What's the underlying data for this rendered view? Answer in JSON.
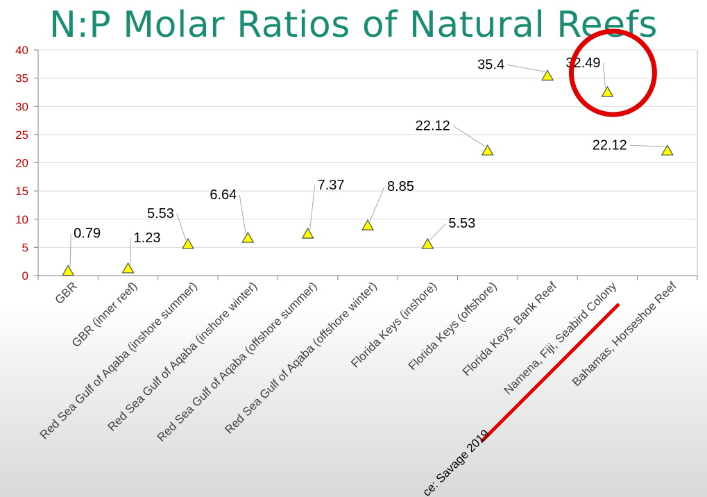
{
  "title": "N:P Molar Ratios of Natural Reefs",
  "chart_data": {
    "type": "scatter",
    "title": "N:P Molar Ratios of Natural Reefs",
    "xlabel": "",
    "ylabel": "",
    "ylim": [
      0,
      40
    ],
    "yticks": [
      0,
      5,
      10,
      15,
      20,
      25,
      30,
      35,
      40
    ],
    "grid": true,
    "marker": "triangle",
    "marker_color": "#ffff00",
    "categories": [
      "GBR",
      "GBR (inner reef)",
      "Red Sea Gulf of Aqaba (inshore summer)",
      "Red Sea Gulf of Aqaba (inshore winter)",
      "Red Sea Gulf of Aqaba (offshore summer)",
      "Red Sea Gulf of Aqaba (offshore winter)",
      "Florida Keys (inshore)",
      "Florida Keys (offshore)",
      "Florida Keys, Bank Reef",
      "Namena, Fiji, Seabird Colony",
      "Bahamas, Horseshoe Reef"
    ],
    "values": [
      0.79,
      1.23,
      5.53,
      6.64,
      7.37,
      8.85,
      5.53,
      22.12,
      35.4,
      32.49,
      22.12
    ],
    "data_labels": [
      "0.79",
      "1.23",
      "5.53",
      "6.64",
      "7.37",
      "8.85",
      "5.53",
      "22.12",
      "35.4",
      "32.49",
      "22.12"
    ],
    "annotations": {
      "highlight_circle_color": "#e00000",
      "underline_color": "#e00000",
      "source_text": "ce: Savage 2019"
    }
  }
}
